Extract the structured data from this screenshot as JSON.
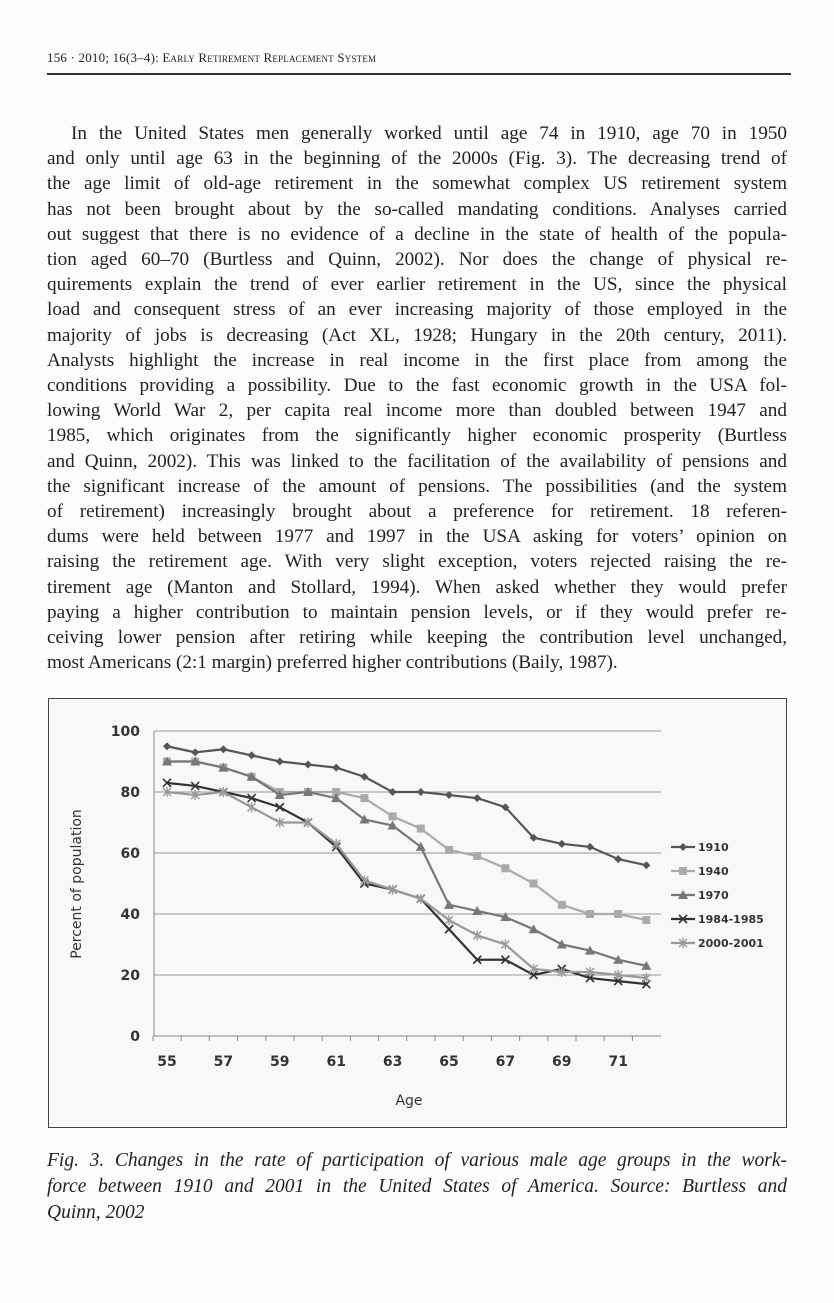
{
  "header": "156 · 2010; 16(3–4): Early Retirement Replacement System",
  "body_lines": [
    "In the United States men generally worked until age 74 in 1910, age 70 in 1950",
    "and only until age 63 in the beginning of the 2000s (Fig. 3). The decreasing trend of",
    "the age limit of old-age retirement in the somewhat complex US retirement system",
    "has not been brought about by the so-called mandating conditions. Analyses carried",
    "out suggest that there is no evidence of a decline in the state of health of the popula-",
    "tion aged 60–70 (Burtless and Quinn, 2002). Nor does the change of physical re-",
    "quirements explain the trend of ever earlier retirement in the US, since the physical",
    "load and consequent stress of an ever increasing majority of those employed in the",
    "majority of jobs is decreasing (Act XL, 1928; Hungary in the 20th century, 2011).",
    "Analysts highlight the increase in real income in the first place from among the",
    "conditions providing a possibility. Due to the fast economic growth in the USA fol-",
    "lowing World War 2, per capita real income more than doubled between 1947 and",
    "1985, which originates from the significantly higher economic prosperity (Burtless",
    "and Quinn, 2002). This was linked to the facilitation of the availability of pensions and",
    "the significant increase of the amount of pensions. The possibilities (and the system",
    "of retirement) increasingly brought about a preference for retirement. 18 referen-",
    "dums were held between 1977 and 1997 in the USA asking for voters’ opinion on",
    "raising the retirement age. With very slight exception, voters rejected raising the re-",
    "tirement age (Manton and Stollard, 1994). When asked whether they would prefer",
    "paying a higher contribution to maintain pension levels, or if they would prefer re-",
    "ceiving lower pension after retiring while keeping the contribution level unchanged,",
    "most Americans (2:1 margin) preferred higher contributions (Baily, 1987)."
  ],
  "caption_lines": [
    "Fig. 3. Changes in the rate of participation of various male age groups in the work-",
    "force between 1910 and 2001 in the United States of America. Source: Burtless and",
    "Quinn, 2002"
  ],
  "chart_data": {
    "type": "line",
    "title": "",
    "xlabel": "Age",
    "ylabel": "Percent of population",
    "x": [
      55,
      56,
      57,
      58,
      59,
      60,
      61,
      62,
      63,
      64,
      65,
      66,
      67,
      68,
      69,
      70,
      71,
      72
    ],
    "xticks": [
      "55",
      "57",
      "59",
      "61",
      "63",
      "65",
      "67",
      "69",
      "71"
    ],
    "yticks": [
      "0",
      "20",
      "40",
      "60",
      "80",
      "100"
    ],
    "ylim": [
      0,
      100
    ],
    "grid": true,
    "legend": "right",
    "series": [
      {
        "name": "1910",
        "marker": "diamond",
        "color": "#555555",
        "values": [
          95,
          93,
          94,
          92,
          90,
          89,
          88,
          85,
          80,
          80,
          79,
          78,
          75,
          65,
          63,
          62,
          58,
          56
        ]
      },
      {
        "name": "1940",
        "marker": "square",
        "color": "#aaaaaa",
        "values": [
          90,
          90,
          88,
          85,
          80,
          80,
          80,
          78,
          72,
          68,
          61,
          59,
          55,
          50,
          43,
          40,
          40,
          38
        ]
      },
      {
        "name": "1970",
        "marker": "triangle",
        "color": "#777777",
        "values": [
          90,
          90,
          88,
          85,
          79,
          80,
          78,
          71,
          69,
          62,
          43,
          41,
          39,
          35,
          30,
          28,
          25,
          23
        ]
      },
      {
        "name": "1984-1985",
        "marker": "x",
        "color": "#333333",
        "values": [
          83,
          82,
          80,
          78,
          75,
          70,
          62,
          50,
          48,
          45,
          35,
          25,
          25,
          20,
          22,
          19,
          18,
          17
        ]
      },
      {
        "name": "2000-2001",
        "marker": "star",
        "color": "#999999",
        "values": [
          80,
          79,
          80,
          75,
          70,
          70,
          63,
          51,
          48,
          45,
          38,
          33,
          30,
          22,
          21,
          21,
          20,
          19
        ]
      }
    ]
  }
}
